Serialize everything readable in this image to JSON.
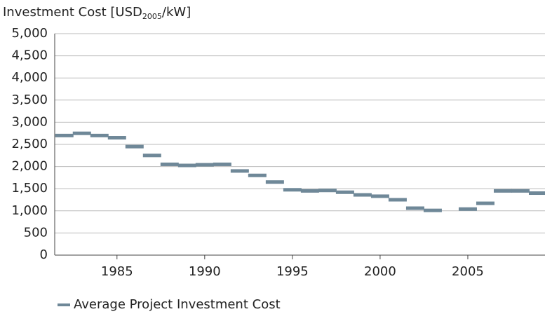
{
  "chart_data": {
    "type": "scatter",
    "marker": "hline",
    "y_label": {
      "text": "Investment Cost [USD",
      "subscript": "2005",
      "suffix": "/kW]"
    },
    "x": [
      1982,
      1983,
      1984,
      1985,
      1986,
      1987,
      1988,
      1989,
      1990,
      1991,
      1992,
      1993,
      1994,
      1995,
      1996,
      1997,
      1998,
      1999,
      2000,
      2001,
      2002,
      2003,
      2005,
      2006,
      2007,
      2008,
      2009
    ],
    "series": [
      {
        "name": "Average Project Investment Cost",
        "color": "#6f8898",
        "values": [
          2700,
          2750,
          2700,
          2650,
          2450,
          2250,
          2050,
          2025,
          2040,
          2050,
          1900,
          1800,
          1650,
          1475,
          1450,
          1460,
          1420,
          1360,
          1330,
          1250,
          1060,
          1010,
          1040,
          1170,
          1450,
          1450,
          1400
        ]
      }
    ],
    "xlim": [
      1981.45,
      2009.4
    ],
    "xticks": [
      1985,
      1990,
      1995,
      2000,
      2005
    ],
    "ylim": [
      0,
      5000
    ],
    "yticks": [
      0,
      500,
      {
        "value": 1000,
        "label": "1,000"
      },
      {
        "value": 1500,
        "label": "1,500"
      },
      {
        "value": 2000,
        "label": "2,000"
      },
      {
        "value": 2500,
        "label": "2,500"
      },
      {
        "value": 3000,
        "label": "3,000"
      },
      {
        "value": 3500,
        "label": "3,500"
      },
      {
        "value": 4000,
        "label": "4,000"
      },
      {
        "value": 4500,
        "label": "4,500"
      },
      {
        "value": 5000,
        "label": "5,000"
      }
    ],
    "grid": true,
    "legend": "bottom-left"
  }
}
